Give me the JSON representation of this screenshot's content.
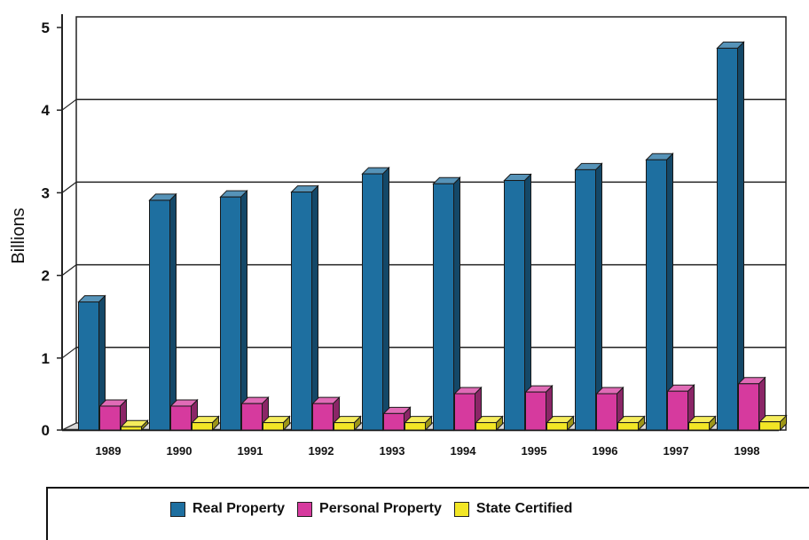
{
  "chart_data": {
    "type": "bar",
    "title": "",
    "xlabel": "",
    "ylabel": "Billions",
    "ylim": [
      0,
      5
    ],
    "yticks": [
      0,
      1,
      2,
      3,
      4,
      5
    ],
    "grid": true,
    "style": "3d-clustered-bars",
    "legend_position": "bottom",
    "categories": [
      "1989",
      "1990",
      "1991",
      "1992",
      "1993",
      "1994",
      "1995",
      "1996",
      "1997",
      "1998"
    ],
    "series": [
      {
        "name": "Real Property",
        "color": "#1E6FA0",
        "values": [
          1.55,
          2.78,
          2.82,
          2.88,
          3.1,
          2.98,
          3.02,
          3.15,
          3.27,
          4.62
        ]
      },
      {
        "name": "Personal Property",
        "color": "#D63A9E",
        "values": [
          0.29,
          0.29,
          0.32,
          0.32,
          0.2,
          0.44,
          0.46,
          0.44,
          0.47,
          0.56
        ]
      },
      {
        "name": "State Certified",
        "color": "#F2E625",
        "values": [
          0.04,
          0.09,
          0.09,
          0.09,
          0.09,
          0.09,
          0.09,
          0.09,
          0.09,
          0.1
        ]
      }
    ]
  }
}
